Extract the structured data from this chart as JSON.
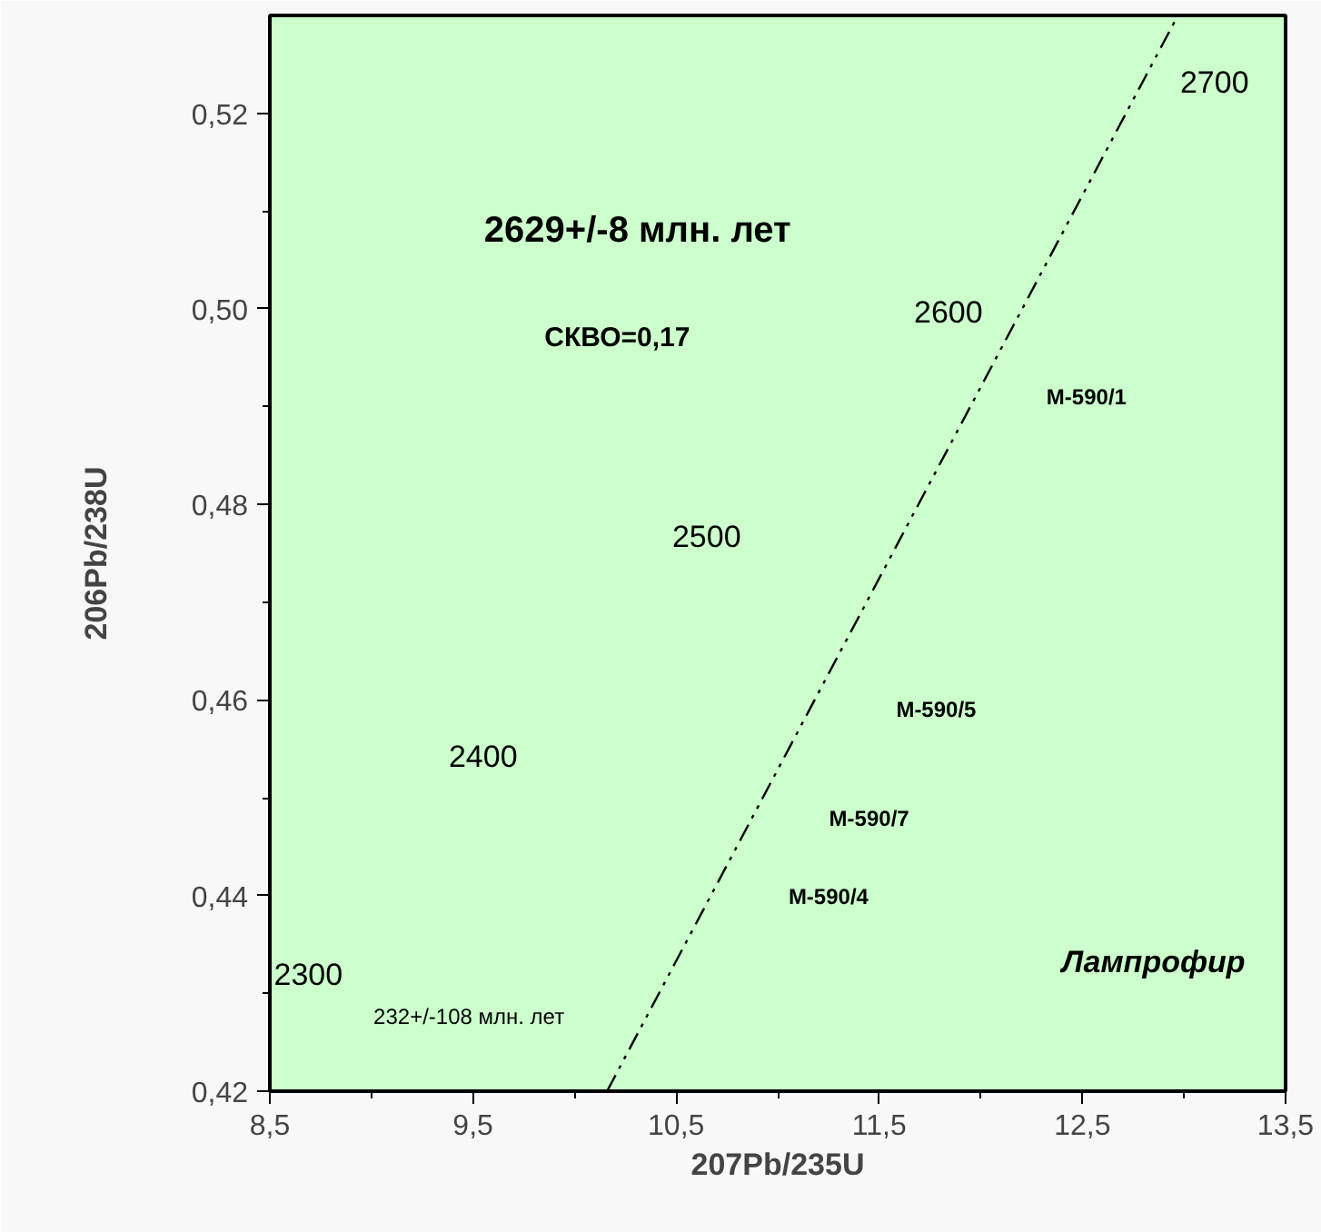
{
  "chart_data": {
    "type": "line",
    "xlabel": "207Pb/235U",
    "ylabel": "206Pb/238U",
    "xlim": [
      8.5,
      13.5
    ],
    "ylim": [
      0.42,
      0.53
    ],
    "xticks": [
      {
        "value": 8.5,
        "label": "8,5"
      },
      {
        "value": 9.0,
        "label": null
      },
      {
        "value": 9.5,
        "label": "9,5"
      },
      {
        "value": 10.0,
        "label": null
      },
      {
        "value": 10.5,
        "label": "10,5"
      },
      {
        "value": 11.0,
        "label": null
      },
      {
        "value": 11.5,
        "label": "11,5"
      },
      {
        "value": 12.0,
        "label": null
      },
      {
        "value": 12.5,
        "label": "12,5"
      },
      {
        "value": 13.0,
        "label": null
      },
      {
        "value": 13.5,
        "label": "13,5"
      }
    ],
    "yticks": [
      {
        "value": 0.42,
        "label": "0,42"
      },
      {
        "value": 0.43,
        "label": null
      },
      {
        "value": 0.44,
        "label": "0,44"
      },
      {
        "value": 0.45,
        "label": null
      },
      {
        "value": 0.46,
        "label": "0,46"
      },
      {
        "value": 0.47,
        "label": null
      },
      {
        "value": 0.48,
        "label": "0,48"
      },
      {
        "value": 0.49,
        "label": null
      },
      {
        "value": 0.5,
        "label": "0,50"
      },
      {
        "value": 0.51,
        "label": null
      },
      {
        "value": 0.52,
        "label": "0,52"
      }
    ],
    "grid": false,
    "marker": "none",
    "line_style": "dashed",
    "series": [
      {
        "color": "#000000",
        "x": [
          10.16,
          12.97
        ],
        "values": [
          0.42,
          0.53
        ]
      }
    ],
    "annotations": [
      "2629+/-8 млн. лет",
      "СКВО=0,17",
      "2700",
      "2600",
      "2500",
      "2400",
      "2300",
      "M-590/1",
      "M-590/5",
      "M-590/7",
      "M-590/4",
      "Лампрофир",
      "232+/-108 млн. лет"
    ]
  }
}
